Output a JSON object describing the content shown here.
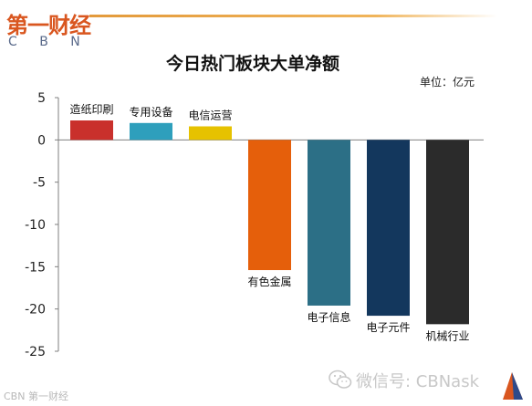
{
  "brand": {
    "logo_cn": "第一财经",
    "logo_en": "C B N",
    "footer_left": "CBN 第一财经",
    "watermark": "微信号: CBNask",
    "watermark_icon": "wechat-icon",
    "accent_color": "#d9561f"
  },
  "chart_data": {
    "type": "bar",
    "title": "今日热门板块大单净额",
    "unit_label": "单位：亿元",
    "categories": [
      "造纸印刷",
      "专用设备",
      "电信运营",
      "有色金属",
      "电子信息",
      "电子元件",
      "机械行业"
    ],
    "values": [
      2.3,
      2.0,
      1.6,
      -15.4,
      -19.6,
      -20.8,
      -21.8
    ],
    "colors": [
      "#c9302c",
      "#2e9fbc",
      "#e6c200",
      "#e55f0b",
      "#2c6f86",
      "#13375d",
      "#2b2b2b"
    ],
    "ylim": [
      -25,
      5
    ],
    "yticks": [
      5,
      0,
      -5,
      -10,
      -15,
      -20,
      -25
    ],
    "grid": false,
    "legend": "none",
    "xlabel": "",
    "ylabel": ""
  }
}
